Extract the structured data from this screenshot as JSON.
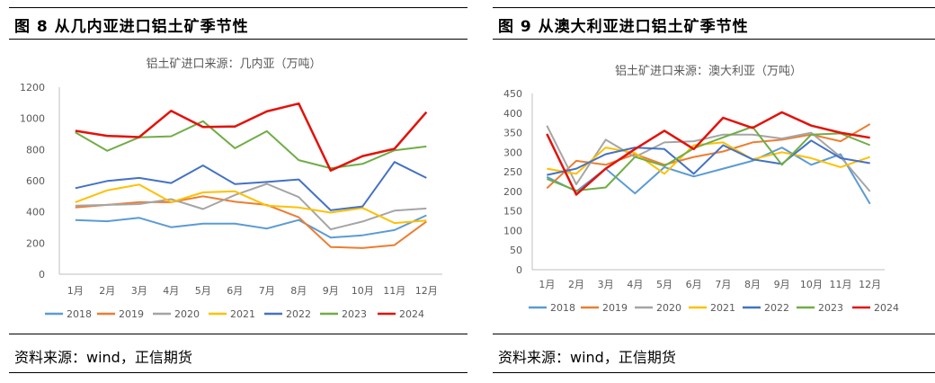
{
  "panels": [
    {
      "figure_title": "图 8  从几内亚进口铝土矿季节性",
      "source": "资料来源：wind，正信期货"
    },
    {
      "figure_title": "图 9  从澳大利亚进口铝土矿季节性",
      "source": "资料来源：wind，正信期货"
    }
  ],
  "series_colors": {
    "2018": "#5b9bd5",
    "2019": "#ed7d31",
    "2020": "#a5a5a5",
    "2021": "#ffc000",
    "2022": "#4472c4",
    "2023": "#70ad47",
    "2024": "#e3120b"
  },
  "chart_data": [
    {
      "type": "line",
      "title": "铝土矿进口来源：几内亚（万吨）",
      "categories": [
        "1月",
        "2月",
        "3月",
        "4月",
        "5月",
        "6月",
        "7月",
        "8月",
        "9月",
        "10月",
        "11月",
        "12月"
      ],
      "ylim": [
        0,
        1200
      ],
      "yticks": [
        0,
        200,
        400,
        600,
        800,
        1000,
        1200
      ],
      "legend_position": "bottom",
      "grid": false,
      "series": [
        {
          "name": "2018",
          "values": [
            348,
            340,
            362,
            302,
            325,
            325,
            293,
            348,
            235,
            250,
            283,
            378
          ]
        },
        {
          "name": "2019",
          "values": [
            428,
            445,
            462,
            462,
            500,
            465,
            445,
            365,
            175,
            168,
            187,
            338
          ]
        },
        {
          "name": "2020",
          "values": [
            440,
            445,
            450,
            482,
            418,
            508,
            580,
            495,
            288,
            338,
            408,
            422
          ]
        },
        {
          "name": "2021",
          "values": [
            462,
            538,
            575,
            462,
            525,
            532,
            440,
            428,
            395,
            425,
            328,
            345
          ]
        },
        {
          "name": "2022",
          "values": [
            552,
            598,
            618,
            585,
            698,
            578,
            592,
            608,
            410,
            435,
            720,
            618
          ]
        },
        {
          "name": "2023",
          "values": [
            910,
            792,
            878,
            885,
            982,
            808,
            918,
            732,
            680,
            708,
            795,
            820
          ]
        },
        {
          "name": "2024",
          "values": [
            920,
            888,
            880,
            1048,
            945,
            948,
            1045,
            1095,
            665,
            758,
            805,
            1040
          ]
        }
      ]
    },
    {
      "type": "line",
      "title": "铝土矿进口来源：澳大利亚（万吨）",
      "categories": [
        "1月",
        "2月",
        "3月",
        "4月",
        "5月",
        "6月",
        "7月",
        "8月",
        "9月",
        "10月",
        "11月",
        "12月"
      ],
      "ylim": [
        0,
        450
      ],
      "yticks": [
        0,
        50,
        100,
        150,
        200,
        250,
        300,
        350,
        400,
        450
      ],
      "legend_position": "bottom",
      "grid": false,
      "series": [
        {
          "name": "2018",
          "values": [
            237,
            200,
            258,
            195,
            262,
            238,
            258,
            278,
            312,
            268,
            295,
            168
          ]
        },
        {
          "name": "2019",
          "values": [
            208,
            278,
            268,
            295,
            268,
            288,
            302,
            325,
            332,
            345,
            328,
            372
          ]
        },
        {
          "name": "2020",
          "values": [
            368,
            218,
            332,
            288,
            325,
            328,
            345,
            345,
            335,
            350,
            288,
            200
          ]
        },
        {
          "name": "2021",
          "values": [
            258,
            245,
            312,
            298,
            245,
            318,
            325,
            282,
            300,
            285,
            262,
            288
          ]
        },
        {
          "name": "2022",
          "values": [
            242,
            258,
            295,
            312,
            308,
            245,
            318,
            282,
            270,
            330,
            285,
            272
          ]
        },
        {
          "name": "2023",
          "values": [
            232,
            202,
            210,
            288,
            265,
            310,
            338,
            365,
            268,
            345,
            348,
            318
          ]
        },
        {
          "name": "2024",
          "values": [
            347,
            192,
            258,
            308,
            355,
            308,
            388,
            362,
            402,
            368,
            350,
            337
          ]
        }
      ]
    }
  ]
}
